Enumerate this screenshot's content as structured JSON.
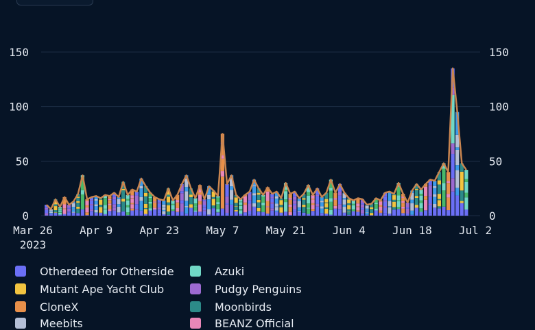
{
  "chart_data": {
    "type": "bar",
    "stacked": true,
    "overlay": "line",
    "title": "",
    "xlabel": "",
    "ylabel": "",
    "ylim": [
      0,
      160
    ],
    "y_ticks": [
      0,
      50,
      100,
      150
    ],
    "x_ticks": [
      "Mar 26",
      "Apr 9",
      "Apr 23",
      "May 7",
      "May 21",
      "Jun 4",
      "Jun 18",
      "Jul 2"
    ],
    "x_year_label": "2023",
    "grid": "horizontal",
    "legend_position": "bottom",
    "x": [
      "2023-03-29",
      "2023-03-30",
      "2023-03-31",
      "2023-04-01",
      "2023-04-02",
      "2023-04-03",
      "2023-04-04",
      "2023-04-05",
      "2023-04-06",
      "2023-04-07",
      "2023-04-08",
      "2023-04-09",
      "2023-04-10",
      "2023-04-11",
      "2023-04-12",
      "2023-04-13",
      "2023-04-14",
      "2023-04-15",
      "2023-04-16",
      "2023-04-17",
      "2023-04-18",
      "2023-04-19",
      "2023-04-20",
      "2023-04-21",
      "2023-04-22",
      "2023-04-23",
      "2023-04-24",
      "2023-04-25",
      "2023-04-26",
      "2023-04-27",
      "2023-04-28",
      "2023-04-29",
      "2023-04-30",
      "2023-05-01",
      "2023-05-02",
      "2023-05-03",
      "2023-05-04",
      "2023-05-05",
      "2023-05-06",
      "2023-05-07",
      "2023-05-08",
      "2023-05-09",
      "2023-05-10",
      "2023-05-11",
      "2023-05-12",
      "2023-05-13",
      "2023-05-14",
      "2023-05-15",
      "2023-05-16",
      "2023-05-17",
      "2023-05-18",
      "2023-05-19",
      "2023-05-20",
      "2023-05-21",
      "2023-05-22",
      "2023-05-23",
      "2023-05-24",
      "2023-05-25",
      "2023-05-26",
      "2023-05-27",
      "2023-05-28",
      "2023-05-29",
      "2023-05-30",
      "2023-05-31",
      "2023-06-01",
      "2023-06-02",
      "2023-06-03",
      "2023-06-04",
      "2023-06-05",
      "2023-06-06",
      "2023-06-07",
      "2023-06-08",
      "2023-06-09",
      "2023-06-10",
      "2023-06-11",
      "2023-06-12",
      "2023-06-13",
      "2023-06-14",
      "2023-06-15",
      "2023-06-16",
      "2023-06-17",
      "2023-06-18",
      "2023-06-19",
      "2023-06-20",
      "2023-06-21",
      "2023-06-22",
      "2023-06-23",
      "2023-06-24",
      "2023-06-25",
      "2023-06-26",
      "2023-06-27",
      "2023-06-28",
      "2023-06-29",
      "2023-06-30"
    ],
    "totals": [
      10,
      6,
      15,
      8,
      17,
      10,
      13,
      20,
      37,
      15,
      17,
      18,
      16,
      19,
      18,
      21,
      17,
      31,
      19,
      24,
      22,
      34,
      27,
      21,
      17,
      15,
      14,
      25,
      14,
      19,
      29,
      37,
      25,
      16,
      28,
      15,
      27,
      23,
      18,
      75,
      29,
      37,
      19,
      15,
      19,
      22,
      33,
      25,
      19,
      26,
      20,
      22,
      16,
      30,
      20,
      22,
      16,
      20,
      28,
      19,
      25,
      17,
      21,
      33,
      21,
      29,
      21,
      16,
      14,
      16,
      15,
      10,
      11,
      16,
      14,
      21,
      22,
      20,
      30,
      20,
      12,
      23,
      29,
      24,
      29,
      33,
      32,
      40,
      48,
      40,
      135,
      95,
      48,
      42
    ],
    "series": [
      {
        "name": "Otherdeed for Otherside",
        "color": "#6b6ff5"
      },
      {
        "name": "Mutant Ape Yacht Club",
        "color": "#f2c440"
      },
      {
        "name": "CloneX",
        "color": "#e8904a"
      },
      {
        "name": "Meebits",
        "color": "#b4bfd6"
      },
      {
        "name": "Azuki",
        "color": "#71d8c6"
      },
      {
        "name": "Pudgy Penguins",
        "color": "#9c6ad1"
      },
      {
        "name": "Moonbirds",
        "color": "#2c8a88"
      },
      {
        "name": "BEANZ Official",
        "color": "#e987b8"
      }
    ],
    "extra_segment_colors": [
      "#3d9be9",
      "#48b86a"
    ],
    "line_color": "#c98550"
  },
  "legend_items": [
    {
      "label": "Otherdeed for Otherside",
      "color": "#6b6ff5"
    },
    {
      "label": "Azuki",
      "color": "#71d8c6"
    },
    {
      "label": "Mutant Ape Yacht Club",
      "color": "#f2c440"
    },
    {
      "label": "Pudgy Penguins",
      "color": "#9c6ad1"
    },
    {
      "label": "CloneX",
      "color": "#e8904a"
    },
    {
      "label": "Moonbirds",
      "color": "#2c8a88"
    },
    {
      "label": "Meebits",
      "color": "#b4bfd6"
    },
    {
      "label": "BEANZ Official",
      "color": "#e987b8"
    }
  ]
}
